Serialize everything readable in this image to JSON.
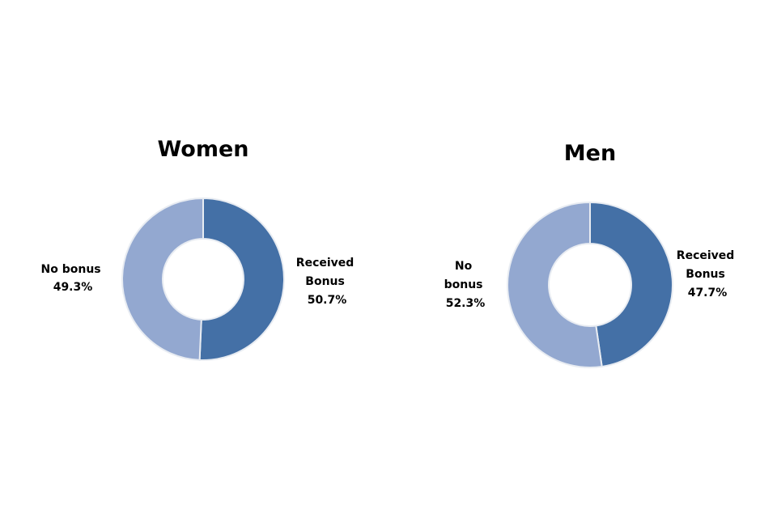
{
  "chart_data": [
    {
      "type": "pie",
      "title": "Women",
      "donut": true,
      "slices": [
        {
          "label": "Received Bonus",
          "value": 50.7,
          "value_label": "50.7%",
          "color": "#4470a6"
        },
        {
          "label": "No bonus",
          "value": 49.3,
          "value_label": "49.3%",
          "color": "#93a8d0"
        }
      ]
    },
    {
      "type": "pie",
      "title": "Men",
      "donut": true,
      "slices": [
        {
          "label": "Received Bonus",
          "value": 47.7,
          "value_label": "47.7%",
          "color": "#4470a6"
        },
        {
          "label": "No bonus",
          "value": 52.3,
          "value_label": "52.3%",
          "color": "#93a8d0"
        }
      ]
    }
  ]
}
